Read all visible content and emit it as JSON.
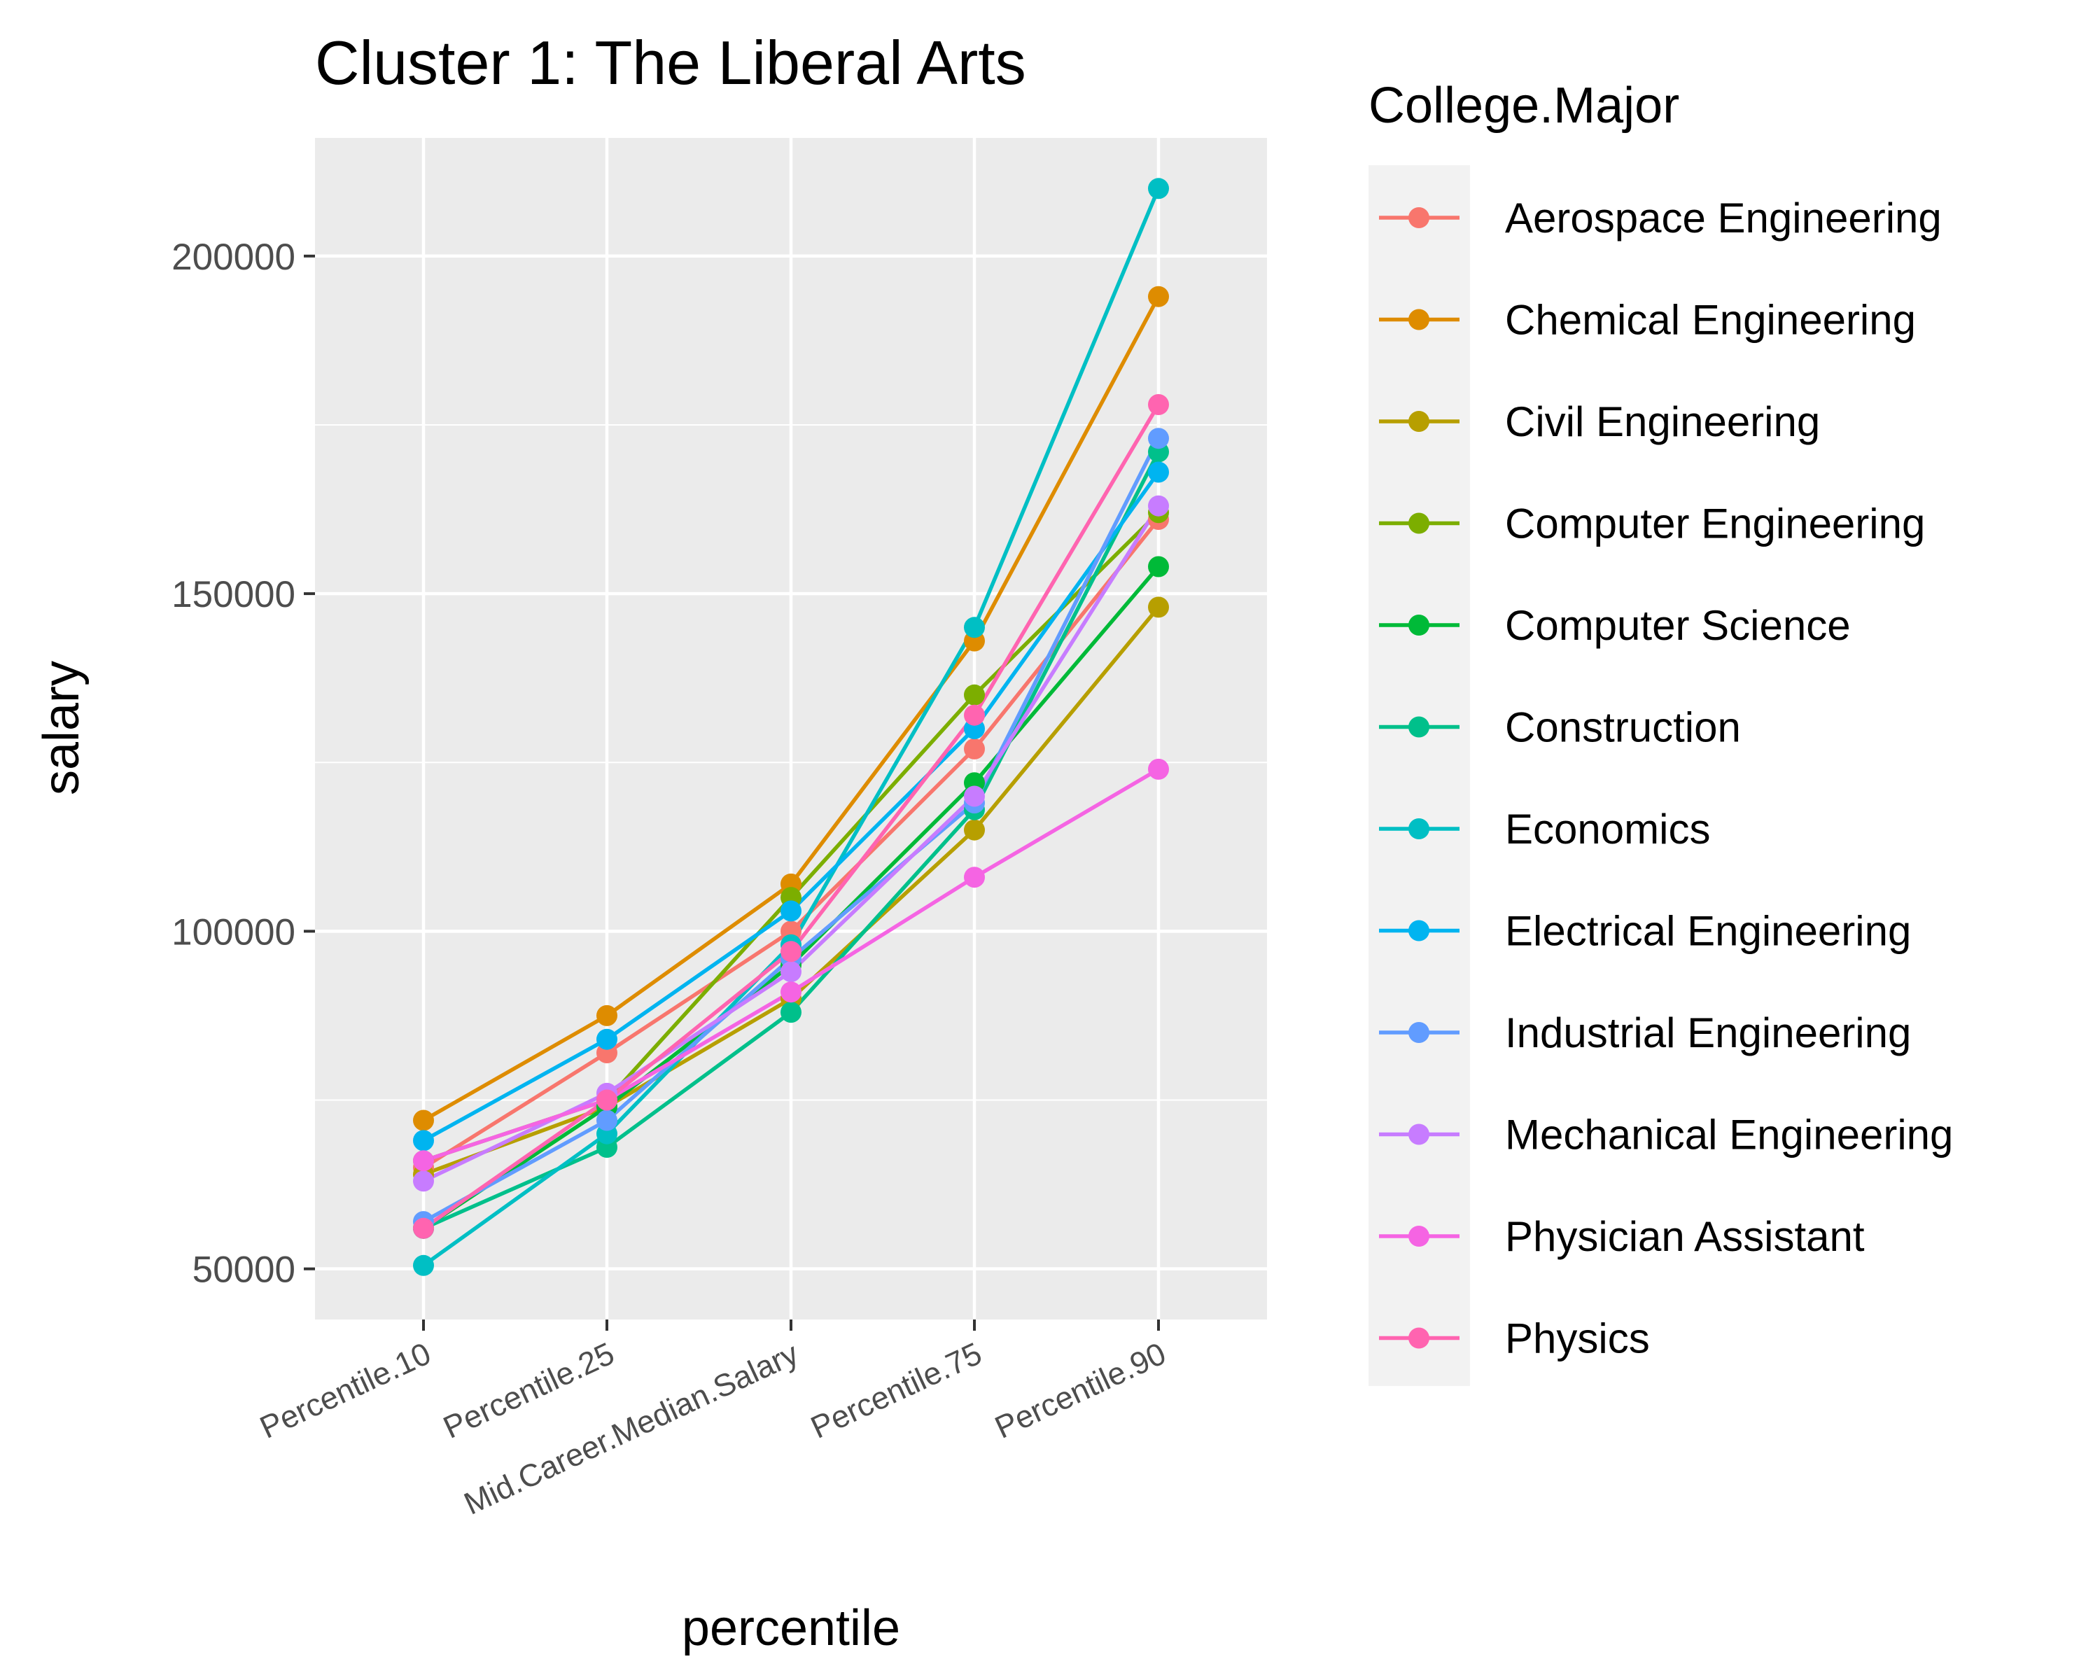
{
  "chart_data": {
    "type": "line",
    "title": "Cluster 1: The Liberal Arts",
    "xlabel": "percentile",
    "ylabel": "salary",
    "categories": [
      "Percentile.10",
      "Percentile.25",
      "Mid.Career.Median.Salary",
      "Percentile.75",
      "Percentile.90"
    ],
    "ylim": [
      42500,
      217500
    ],
    "yticks": [
      50000,
      100000,
      150000,
      200000
    ],
    "ytick_labels": [
      "50000",
      "100000",
      "150000",
      "200000"
    ],
    "grid": true,
    "legend": {
      "title": "College.Major",
      "position": "right"
    },
    "series": [
      {
        "name": "Aerospace Engineering",
        "color": "#F8766D",
        "values": [
          65000,
          82000,
          100000,
          127000,
          161000
        ]
      },
      {
        "name": "Chemical Engineering",
        "color": "#DE8C00",
        "values": [
          72000,
          87500,
          107000,
          143000,
          194000
        ]
      },
      {
        "name": "Civil Engineering",
        "color": "#B79F00",
        "values": [
          64000,
          74000,
          90000,
          115000,
          148000
        ]
      },
      {
        "name": "Computer Engineering",
        "color": "#7CAE00",
        "values": [
          66000,
          75000,
          105000,
          135000,
          162000
        ]
      },
      {
        "name": "Computer Science",
        "color": "#00BA38",
        "values": [
          56000,
          74000,
          95000,
          122000,
          154000
        ]
      },
      {
        "name": "Construction",
        "color": "#00C08B",
        "values": [
          56000,
          68000,
          88000,
          118000,
          171000
        ]
      },
      {
        "name": "Economics",
        "color": "#00BFC4",
        "values": [
          50500,
          70000,
          98000,
          145000,
          210000
        ]
      },
      {
        "name": "Electrical Engineering",
        "color": "#00B4F0",
        "values": [
          69000,
          84000,
          103000,
          130000,
          168000
        ]
      },
      {
        "name": "Industrial Engineering",
        "color": "#619CFF",
        "values": [
          57000,
          72000,
          96000,
          119000,
          173000
        ]
      },
      {
        "name": "Mechanical Engineering",
        "color": "#C77CFF",
        "values": [
          63000,
          76000,
          94000,
          120000,
          163000
        ]
      },
      {
        "name": "Physician Assistant",
        "color": "#F564E3",
        "values": [
          66000,
          75000,
          91000,
          108000,
          124000
        ]
      },
      {
        "name": "Physics",
        "color": "#FF64B0",
        "values": [
          56000,
          75000,
          97000,
          132000,
          178000
        ]
      }
    ]
  }
}
